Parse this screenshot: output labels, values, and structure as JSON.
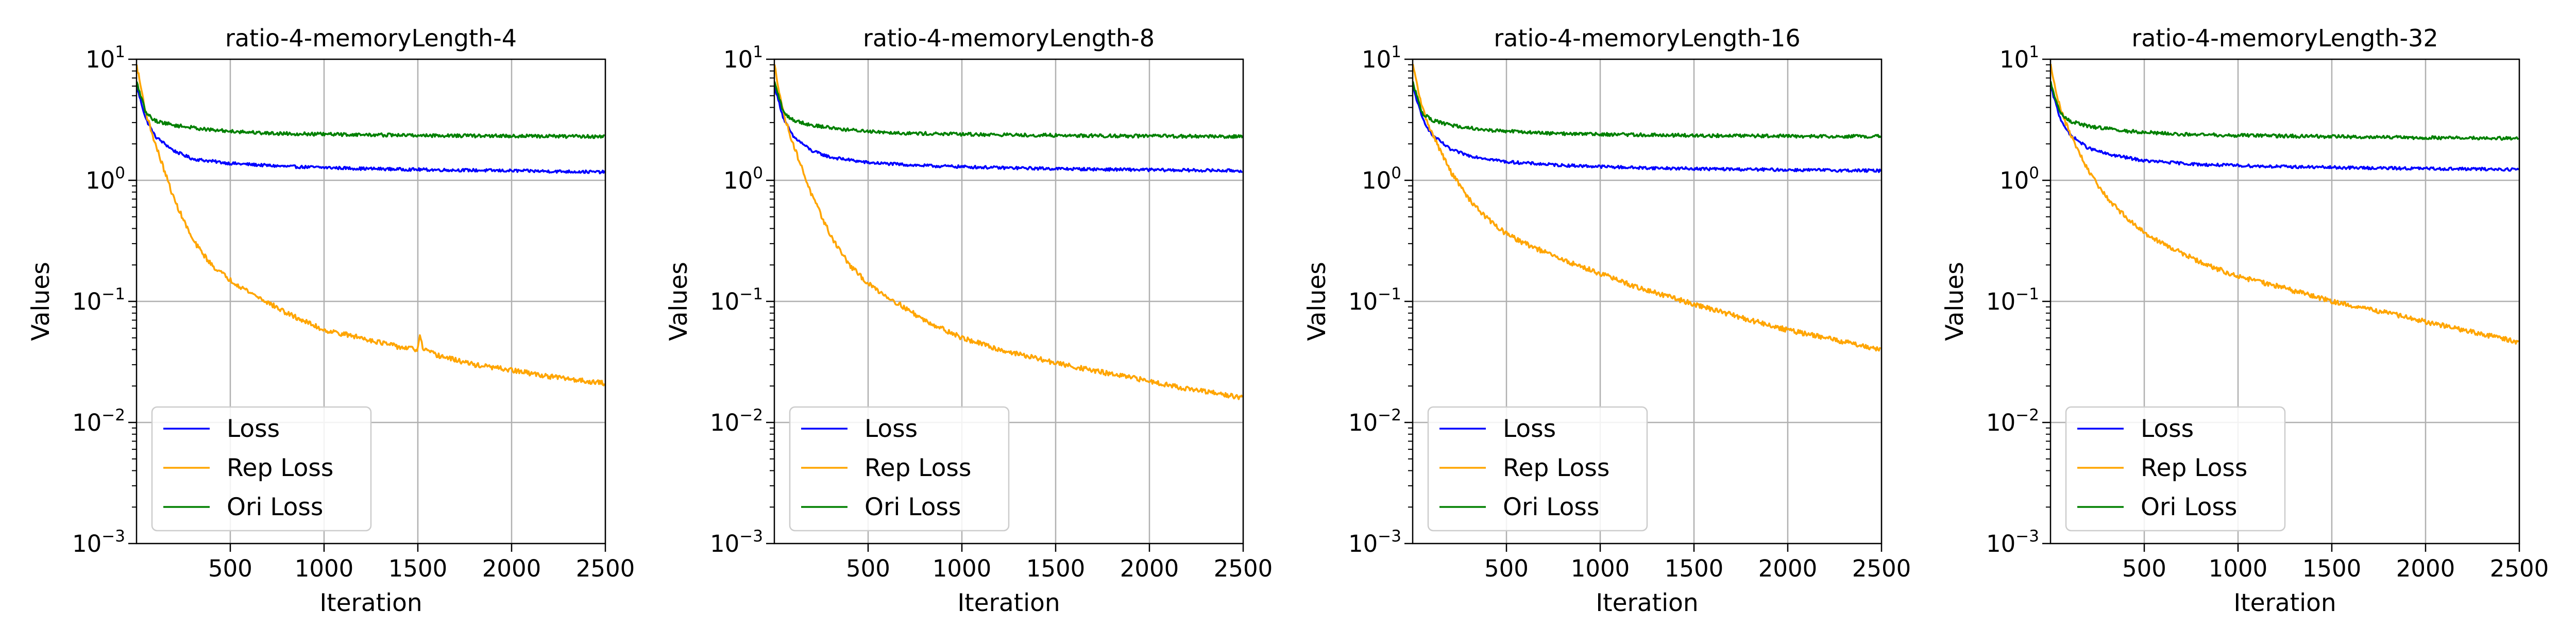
{
  "chart_data": [
    {
      "type": "line",
      "title": "ratio-4-memoryLength-4",
      "xlabel": "Iteration",
      "ylabel": "Values",
      "yscale": "log",
      "xlim": [
        0,
        2500
      ],
      "ylim": [
        0.001,
        10
      ],
      "xticks": [
        500,
        1000,
        1500,
        2000,
        2500
      ],
      "yticks": [
        0.001,
        0.01,
        0.1,
        1,
        10
      ],
      "legend_position": "lower-left",
      "grid": true,
      "series": [
        {
          "name": "Loss",
          "color": "#0000ff",
          "x": [
            0,
            50,
            100,
            200,
            300,
            500,
            800,
            1200,
            1600,
            2000,
            2500
          ],
          "y": [
            6.0,
            3.2,
            2.3,
            1.75,
            1.5,
            1.38,
            1.3,
            1.25,
            1.22,
            1.2,
            1.17
          ]
        },
        {
          "name": "Rep Loss",
          "color": "#ffa500",
          "x": [
            0,
            50,
            100,
            200,
            300,
            400,
            500,
            600,
            800,
            1000,
            1200,
            1400,
            1500,
            1510,
            1530,
            1600,
            1800,
            2000,
            2200,
            2500
          ],
          "y": [
            9.0,
            3.6,
            2.0,
            0.7,
            0.32,
            0.2,
            0.15,
            0.12,
            0.08,
            0.058,
            0.05,
            0.042,
            0.04,
            0.052,
            0.04,
            0.036,
            0.03,
            0.027,
            0.024,
            0.021
          ]
        },
        {
          "name": "Ori Loss",
          "color": "#008000",
          "x": [
            0,
            50,
            100,
            200,
            400,
            700,
            1000,
            1500,
            2000,
            2500
          ],
          "y": [
            6.5,
            3.6,
            3.1,
            2.85,
            2.6,
            2.45,
            2.4,
            2.35,
            2.32,
            2.3
          ]
        }
      ]
    },
    {
      "type": "line",
      "title": "ratio-4-memoryLength-8",
      "xlabel": "Iteration",
      "ylabel": "Values",
      "yscale": "log",
      "xlim": [
        0,
        2500
      ],
      "ylim": [
        0.001,
        10
      ],
      "xticks": [
        500,
        1000,
        1500,
        2000,
        2500
      ],
      "yticks": [
        0.001,
        0.01,
        0.1,
        1,
        10
      ],
      "legend_position": "lower-left",
      "grid": true,
      "series": [
        {
          "name": "Loss",
          "color": "#0000ff",
          "x": [
            0,
            50,
            100,
            200,
            300,
            500,
            800,
            1200,
            1600,
            2000,
            2500
          ],
          "y": [
            6.0,
            3.2,
            2.3,
            1.75,
            1.55,
            1.4,
            1.32,
            1.27,
            1.24,
            1.22,
            1.2
          ]
        },
        {
          "name": "Rep Loss",
          "color": "#ffa500",
          "x": [
            0,
            50,
            100,
            200,
            300,
            400,
            500,
            600,
            800,
            1000,
            1200,
            1500,
            1800,
            2000,
            2200,
            2500
          ],
          "y": [
            9.0,
            3.5,
            2.0,
            0.75,
            0.35,
            0.2,
            0.14,
            0.11,
            0.07,
            0.05,
            0.04,
            0.031,
            0.025,
            0.022,
            0.019,
            0.016
          ]
        },
        {
          "name": "Ori Loss",
          "color": "#008000",
          "x": [
            0,
            50,
            100,
            200,
            400,
            700,
            1000,
            1500,
            2000,
            2500
          ],
          "y": [
            6.5,
            3.6,
            3.15,
            2.85,
            2.6,
            2.45,
            2.4,
            2.35,
            2.32,
            2.3
          ]
        }
      ]
    },
    {
      "type": "line",
      "title": "ratio-4-memoryLength-16",
      "xlabel": "Iteration",
      "ylabel": "Values",
      "yscale": "log",
      "xlim": [
        0,
        2500
      ],
      "ylim": [
        0.001,
        10
      ],
      "xticks": [
        500,
        1000,
        1500,
        2000,
        2500
      ],
      "yticks": [
        0.001,
        0.01,
        0.1,
        1,
        10
      ],
      "legend_position": "lower-left",
      "grid": true,
      "series": [
        {
          "name": "Loss",
          "color": "#0000ff",
          "x": [
            0,
            50,
            100,
            200,
            300,
            500,
            800,
            1200,
            1600,
            2000,
            2500
          ],
          "y": [
            6.0,
            3.3,
            2.4,
            1.8,
            1.6,
            1.42,
            1.33,
            1.27,
            1.24,
            1.22,
            1.2
          ]
        },
        {
          "name": "Rep Loss",
          "color": "#ffa500",
          "x": [
            0,
            50,
            100,
            200,
            300,
            400,
            500,
            600,
            800,
            1000,
            1200,
            1500,
            1800,
            2000,
            2200,
            2500
          ],
          "y": [
            9.0,
            4.0,
            2.5,
            1.2,
            0.7,
            0.48,
            0.36,
            0.3,
            0.22,
            0.17,
            0.13,
            0.095,
            0.07,
            0.058,
            0.05,
            0.04
          ]
        },
        {
          "name": "Ori Loss",
          "color": "#008000",
          "x": [
            0,
            50,
            100,
            200,
            400,
            700,
            1000,
            1500,
            2000,
            2500
          ],
          "y": [
            6.5,
            3.6,
            3.15,
            2.85,
            2.6,
            2.45,
            2.4,
            2.35,
            2.32,
            2.3
          ]
        }
      ]
    },
    {
      "type": "line",
      "title": "ratio-4-memoryLength-32",
      "xlabel": "Iteration",
      "ylabel": "Values",
      "yscale": "log",
      "xlim": [
        0,
        2500
      ],
      "ylim": [
        0.001,
        10
      ],
      "xticks": [
        500,
        1000,
        1500,
        2000,
        2500
      ],
      "yticks": [
        0.001,
        0.01,
        0.1,
        1,
        10
      ],
      "legend_position": "lower-left",
      "grid": true,
      "series": [
        {
          "name": "Loss",
          "color": "#0000ff",
          "x": [
            0,
            50,
            100,
            200,
            300,
            500,
            800,
            1200,
            1600,
            2000,
            2500
          ],
          "y": [
            6.0,
            3.3,
            2.4,
            1.85,
            1.65,
            1.45,
            1.35,
            1.3,
            1.27,
            1.25,
            1.23
          ]
        },
        {
          "name": "Rep Loss",
          "color": "#ffa500",
          "x": [
            0,
            50,
            100,
            200,
            300,
            400,
            500,
            600,
            800,
            1000,
            1200,
            1500,
            1800,
            2000,
            2200,
            2500
          ],
          "y": [
            9.0,
            4.0,
            2.5,
            1.2,
            0.72,
            0.5,
            0.37,
            0.3,
            0.21,
            0.16,
            0.135,
            0.1,
            0.08,
            0.068,
            0.058,
            0.046
          ]
        },
        {
          "name": "Ori Loss",
          "color": "#008000",
          "x": [
            0,
            50,
            100,
            200,
            400,
            700,
            1000,
            1500,
            2000,
            2500
          ],
          "y": [
            6.5,
            3.6,
            3.1,
            2.8,
            2.55,
            2.4,
            2.35,
            2.3,
            2.25,
            2.22
          ]
        }
      ]
    }
  ]
}
